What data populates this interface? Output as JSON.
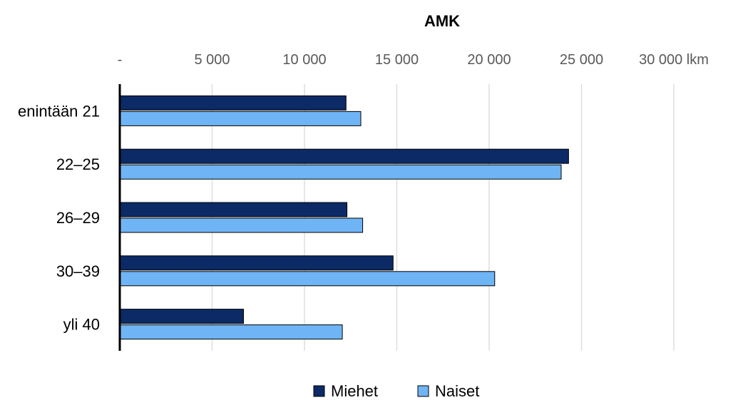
{
  "chart_data": {
    "type": "bar",
    "orientation": "horizontal",
    "title": "AMK",
    "unit": "lkm",
    "categories": [
      "enintään 21",
      "22–25",
      "26–29",
      "30–39",
      "yli 40"
    ],
    "series": [
      {
        "name": "Miehet",
        "color": "#0b2a66",
        "values": [
          12250,
          24300,
          12300,
          14800,
          6700
        ]
      },
      {
        "name": "Naiset",
        "color": "#6fb4f5",
        "values": [
          13050,
          23900,
          13150,
          20300,
          12050
        ]
      }
    ],
    "xlim": [
      0,
      30000
    ],
    "x_ticks": [
      0,
      5000,
      10000,
      15000,
      20000,
      25000,
      30000
    ],
    "x_tick_labels": [
      "-",
      "5 000",
      "10 000",
      "15 000",
      "20 000",
      "25 000",
      "30 000 lkm"
    ],
    "axis_position": "top",
    "grid": true,
    "legend_position": "bottom"
  }
}
